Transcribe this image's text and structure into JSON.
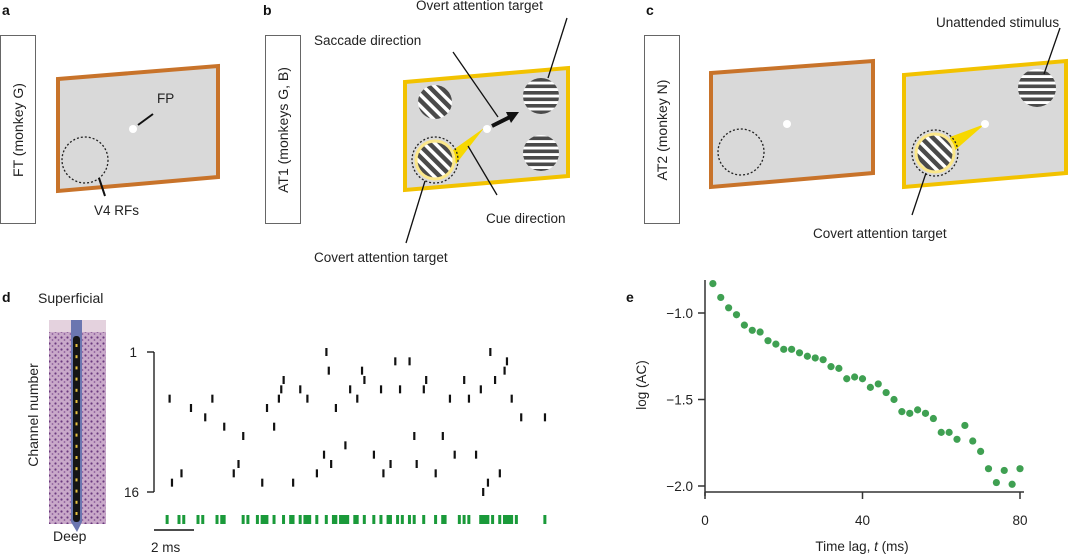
{
  "panels": {
    "a": {
      "letter": "a",
      "condition": "FT (monkey G)",
      "labels": {
        "fp": "FP",
        "rfs": "V4 RFs"
      },
      "frame_color": "#c8732a"
    },
    "b": {
      "letter": "b",
      "condition": "AT1 (monkeys G, B)",
      "labels": {
        "overt": "Overt attention target",
        "saccade": "Saccade direction",
        "cue": "Cue direction",
        "covert": "Covert attention target"
      },
      "frame_color": "#f2c200"
    },
    "c": {
      "letter": "c",
      "condition": "AT2 (monkey N)",
      "labels": {
        "unattended": "Unattended stimulus",
        "covert": "Covert attention target"
      },
      "frame_colors": [
        "#c8732a",
        "#f2c200"
      ]
    },
    "d": {
      "letter": "d",
      "labels": {
        "superficial": "Superficial",
        "deep": "Deep",
        "ylabel": "Channel number",
        "ytick_top": "1",
        "ytick_bottom": "16",
        "scalebar": "2 ms"
      },
      "channel_range": [
        1,
        16
      ],
      "time_span_ms": 16.5,
      "spike_color": "#111111",
      "mua_color": "#1a9a3a",
      "spikes": [
        {
          "t": 0.4,
          "ch": 6
        },
        {
          "t": 0.5,
          "ch": 15
        },
        {
          "t": 0.9,
          "ch": 14
        },
        {
          "t": 1.3,
          "ch": 7
        },
        {
          "t": 1.9,
          "ch": 8
        },
        {
          "t": 2.2,
          "ch": 6
        },
        {
          "t": 2.7,
          "ch": 9
        },
        {
          "t": 3.1,
          "ch": 14
        },
        {
          "t": 3.3,
          "ch": 13
        },
        {
          "t": 3.5,
          "ch": 10
        },
        {
          "t": 4.3,
          "ch": 15
        },
        {
          "t": 4.5,
          "ch": 7
        },
        {
          "t": 4.8,
          "ch": 9
        },
        {
          "t": 5.0,
          "ch": 6
        },
        {
          "t": 5.1,
          "ch": 5
        },
        {
          "t": 5.2,
          "ch": 4
        },
        {
          "t": 5.6,
          "ch": 15
        },
        {
          "t": 5.9,
          "ch": 5
        },
        {
          "t": 6.2,
          "ch": 6
        },
        {
          "t": 6.6,
          "ch": 14
        },
        {
          "t": 6.9,
          "ch": 12
        },
        {
          "t": 7.0,
          "ch": 1
        },
        {
          "t": 7.1,
          "ch": 3
        },
        {
          "t": 7.2,
          "ch": 13
        },
        {
          "t": 7.4,
          "ch": 7
        },
        {
          "t": 7.8,
          "ch": 11
        },
        {
          "t": 8.0,
          "ch": 5
        },
        {
          "t": 8.3,
          "ch": 6
        },
        {
          "t": 8.5,
          "ch": 3
        },
        {
          "t": 8.6,
          "ch": 4
        },
        {
          "t": 9.0,
          "ch": 12
        },
        {
          "t": 9.3,
          "ch": 5
        },
        {
          "t": 9.4,
          "ch": 14
        },
        {
          "t": 9.7,
          "ch": 13
        },
        {
          "t": 9.9,
          "ch": 2
        },
        {
          "t": 10.1,
          "ch": 5
        },
        {
          "t": 10.5,
          "ch": 2
        },
        {
          "t": 10.7,
          "ch": 10
        },
        {
          "t": 10.8,
          "ch": 13
        },
        {
          "t": 11.1,
          "ch": 5
        },
        {
          "t": 11.2,
          "ch": 4
        },
        {
          "t": 11.6,
          "ch": 14
        },
        {
          "t": 11.9,
          "ch": 10
        },
        {
          "t": 12.2,
          "ch": 6
        },
        {
          "t": 12.8,
          "ch": 4
        },
        {
          "t": 13.0,
          "ch": 6
        },
        {
          "t": 13.3,
          "ch": 12
        },
        {
          "t": 13.5,
          "ch": 5
        },
        {
          "t": 13.8,
          "ch": 15
        },
        {
          "t": 14.1,
          "ch": 4
        },
        {
          "t": 14.3,
          "ch": 14
        },
        {
          "t": 14.6,
          "ch": 2
        },
        {
          "t": 14.8,
          "ch": 6
        },
        {
          "t": 15.2,
          "ch": 8
        },
        {
          "t": 16.2,
          "ch": 8
        },
        {
          "t": 12.4,
          "ch": 12
        },
        {
          "t": 13.9,
          "ch": 1
        },
        {
          "t": 14.5,
          "ch": 3
        },
        {
          "t": 13.6,
          "ch": 16
        }
      ],
      "mua": [
        0.3,
        0.8,
        1.0,
        1.6,
        1.8,
        2.4,
        2.6,
        2.7,
        3.5,
        3.7,
        4.1,
        4.3,
        4.4,
        4.5,
        4.8,
        5.2,
        5.5,
        5.6,
        5.9,
        6.1,
        6.2,
        6.3,
        6.6,
        7.0,
        7.3,
        7.4,
        7.6,
        7.7,
        7.8,
        7.9,
        8.2,
        8.3,
        8.6,
        9.0,
        9.3,
        9.6,
        9.7,
        10.0,
        10.2,
        10.5,
        10.7,
        11.1,
        11.6,
        11.9,
        12.0,
        12.6,
        12.8,
        13.0,
        13.5,
        13.6,
        13.7,
        13.8,
        14.0,
        14.3,
        14.5,
        14.6,
        14.7,
        14.8,
        15.0,
        16.2
      ]
    }
  },
  "chart_data": {
    "type": "scatter",
    "panel": "e",
    "title": "",
    "xlabel": "Time lag, t (ms)",
    "ylabel": "log (AC)",
    "xlim": [
      0,
      81
    ],
    "ylim": [
      -2.05,
      -0.8
    ],
    "xticks": [
      0,
      40,
      80
    ],
    "yticks": [
      -1.0,
      -1.5,
      -2.0
    ],
    "xtick_labels": [
      "0",
      "40",
      "80"
    ],
    "ytick_labels": [
      "−1.0",
      "−1.5",
      "−2.0"
    ],
    "grid": false,
    "legend": null,
    "color": "#3fa052",
    "x": [
      2,
      4,
      6,
      8,
      10,
      12,
      14,
      16,
      18,
      20,
      22,
      24,
      26,
      28,
      30,
      32,
      34,
      36,
      38,
      40,
      42,
      44,
      46,
      48,
      50,
      52,
      54,
      56,
      58,
      60,
      62,
      64,
      66,
      68,
      70,
      72,
      74,
      76,
      78,
      80
    ],
    "y": [
      -0.83,
      -0.91,
      -0.97,
      -1.01,
      -1.07,
      -1.1,
      -1.11,
      -1.16,
      -1.18,
      -1.21,
      -1.21,
      -1.23,
      -1.25,
      -1.26,
      -1.27,
      -1.31,
      -1.32,
      -1.38,
      -1.37,
      -1.38,
      -1.43,
      -1.41,
      -1.46,
      -1.5,
      -1.57,
      -1.58,
      -1.56,
      -1.58,
      -1.61,
      -1.69,
      -1.69,
      -1.73,
      -1.65,
      -1.74,
      -1.8,
      -1.9,
      -1.98,
      -1.91,
      -1.99,
      -1.9
    ]
  },
  "panel_e_letter": "e"
}
